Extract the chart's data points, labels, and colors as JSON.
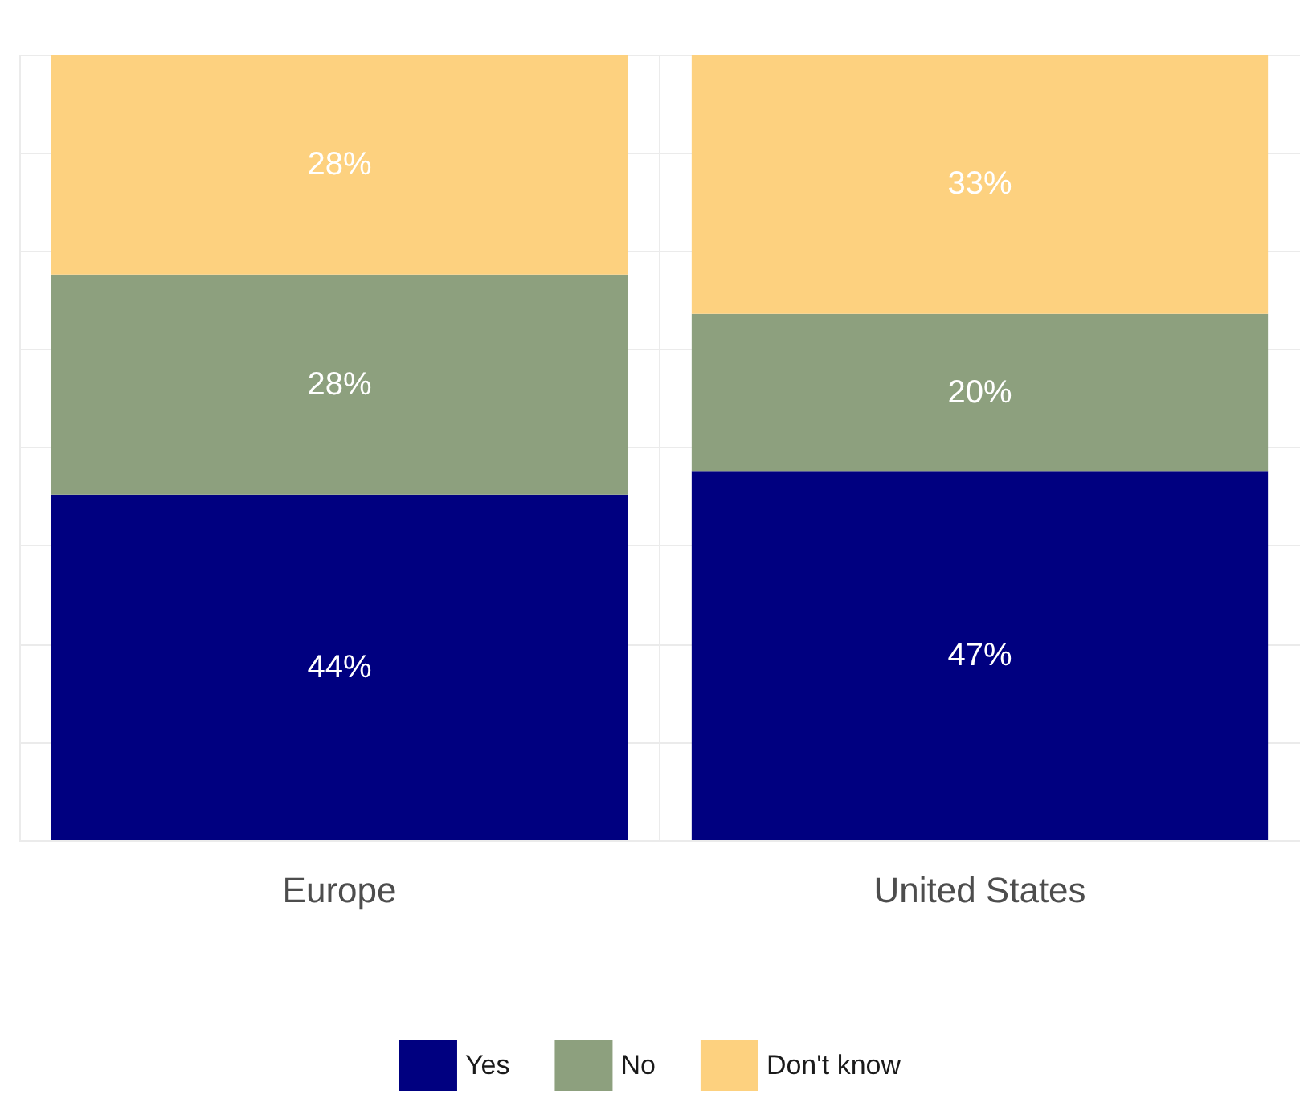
{
  "chart_data": {
    "type": "bar",
    "stacked": true,
    "categories": [
      "Europe",
      "United States"
    ],
    "series": [
      {
        "name": "Yes",
        "color": "#000080",
        "values": [
          44,
          47
        ],
        "value_labels": [
          "44%",
          "47%"
        ]
      },
      {
        "name": "No",
        "color": "#8da07e",
        "values": [
          28,
          20
        ],
        "value_labels": [
          "28%",
          "20%"
        ]
      },
      {
        "name": "Don't know",
        "color": "#fdd17f",
        "values": [
          28,
          33
        ],
        "value_labels": [
          "28%",
          "33%"
        ]
      }
    ],
    "ylim": [
      0,
      100
    ],
    "yticks": [
      {
        "value": 0,
        "label": null
      },
      {
        "value": 12.5,
        "label": null
      },
      {
        "value": 25,
        "label": null
      },
      {
        "value": 37.5,
        "label": null
      },
      {
        "value": 50,
        "label": null
      },
      {
        "value": 62.5,
        "label": null
      },
      {
        "value": 75,
        "label": null
      },
      {
        "value": 87.5,
        "label": null
      },
      {
        "value": 100,
        "label": null
      }
    ],
    "tick_labels": "x",
    "grid": true,
    "legend": "bottom"
  }
}
